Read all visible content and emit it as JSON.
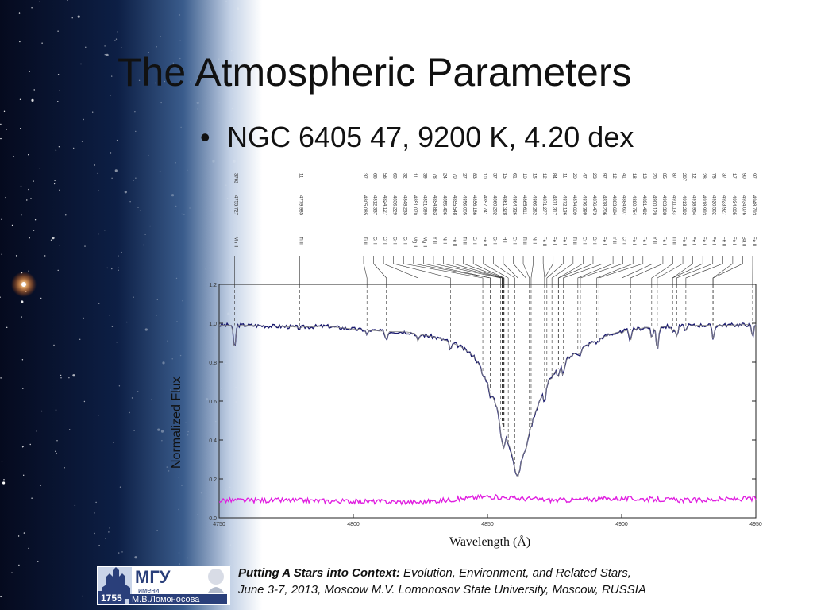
{
  "slide": {
    "title": "The Atmospheric Parameters",
    "bullet": "NGC 6405 47, 9200 K, 4.20 dex"
  },
  "footer": {
    "event_bold": "Putting A Stars into Context:",
    "event_rest": " Evolution, Environment, and Related Stars,",
    "line2": "June 3-7, 2013, Moscow M.V. Lomonosov State University, Moscow, RUSSIA"
  },
  "logo": {
    "text_main": "МГУ",
    "text_imeni": "имени",
    "text_name": "М.В.Ломоносова",
    "year": "1755"
  },
  "colors": {
    "observed": "#1a1a6e",
    "residual": "#e020e0",
    "lines": "#333333"
  },
  "chart_data": {
    "type": "line",
    "xlabel": "Wavelength (Å)",
    "ylabel": "Normalized Flux",
    "xlim": [
      4750,
      4950
    ],
    "ylim": [
      0.0,
      1.2
    ],
    "xticks": [
      4750,
      4800,
      4850,
      4900,
      4950
    ],
    "yticks": [
      0.0,
      0.2,
      0.4,
      0.6,
      0.8,
      1.0,
      1.2
    ],
    "series": [
      {
        "kind": "observed spectrum",
        "x": [
          4750,
          4760,
          4770,
          4780,
          4790,
          4800,
          4810,
          4820,
          4830,
          4835,
          4840,
          4845,
          4848,
          4851,
          4854,
          4856,
          4858,
          4860,
          4861.3,
          4862,
          4864,
          4866,
          4868,
          4870,
          4872,
          4875,
          4880,
          4885,
          4890,
          4895,
          4900,
          4910,
          4920,
          4930,
          4940,
          4950
        ],
        "y": [
          0.99,
          0.99,
          0.985,
          0.98,
          0.985,
          0.97,
          0.96,
          0.955,
          0.93,
          0.91,
          0.88,
          0.83,
          0.76,
          0.66,
          0.55,
          0.46,
          0.38,
          0.29,
          0.2,
          0.25,
          0.37,
          0.47,
          0.55,
          0.62,
          0.69,
          0.75,
          0.82,
          0.87,
          0.91,
          0.94,
          0.96,
          0.98,
          0.985,
          0.99,
          0.99,
          0.995
        ]
      },
      {
        "kind": "residual",
        "x": [
          4750,
          4775,
          4800,
          4825,
          4850,
          4875,
          4900,
          4925,
          4950
        ],
        "y": [
          0.09,
          0.09,
          0.085,
          0.08,
          0.11,
          0.09,
          0.1,
          0.09,
          0.1
        ]
      }
    ],
    "absorption_lines": [
      {
        "wl": 4755.73,
        "ion": "Mn II",
        "label": "4755.727",
        "ew": "3762"
      },
      {
        "wl": 4779.99,
        "ion": "Ti II",
        "label": "4779.985",
        "ew": "11"
      },
      {
        "wl": 4805.09,
        "ion": "Ti II",
        "label": "4805.085",
        "ew": "37"
      },
      {
        "wl": 4812.34,
        "ion": "Cr II",
        "label": "4812.337",
        "ew": "66"
      },
      {
        "wl": 4824.13,
        "ion": "Cr II",
        "label": "4824.127",
        "ew": "56"
      },
      {
        "wl": 4836.23,
        "ion": "Cr II",
        "label": "4836.229",
        "ew": "60"
      },
      {
        "wl": 4848.24,
        "ion": "Cr II",
        "label": "4848.235",
        "ew": "32"
      },
      {
        "wl": 4851.07,
        "ion": "Mg II",
        "label": "4851.070",
        "ew": "11"
      },
      {
        "wl": 4851.1,
        "ion": "Mg II",
        "label": "4851.099",
        "ew": "39"
      },
      {
        "wl": 4854.86,
        "ion": "Y II",
        "label": "4854.863",
        "ew": "78"
      },
      {
        "wl": 4855.41,
        "ion": "Ni I",
        "label": "4855.406",
        "ew": "24"
      },
      {
        "wl": 4855.55,
        "ion": "Fe II",
        "label": "4855.548",
        "ew": "70"
      },
      {
        "wl": 4856.01,
        "ion": "Ti II",
        "label": "4856.005",
        "ew": "27"
      },
      {
        "wl": 4856.19,
        "ion": "Cr II",
        "label": "4856.186",
        "ew": "83"
      },
      {
        "wl": 4857.74,
        "ion": "Fe II",
        "label": "4857.741",
        "ew": "10"
      },
      {
        "wl": 4860.2,
        "ion": "Cr I",
        "label": "4860.202",
        "ew": "37"
      },
      {
        "wl": 4861.33,
        "ion": "H I",
        "label": "4861.328",
        "ew": "15"
      },
      {
        "wl": 4864.33,
        "ion": "Cr I",
        "label": "4864.326",
        "ew": "61"
      },
      {
        "wl": 4865.61,
        "ion": "Ti II",
        "label": "4865.611",
        "ew": "10"
      },
      {
        "wl": 4866.26,
        "ion": "Ni I",
        "label": "4866.262",
        "ew": "15"
      },
      {
        "wl": 4871.28,
        "ion": "Fe II",
        "label": "4871.277",
        "ew": "12"
      },
      {
        "wl": 4871.32,
        "ion": "Fe I",
        "label": "4871.317",
        "ew": "84"
      },
      {
        "wl": 4872.14,
        "ion": "Fe I",
        "label": "4872.136",
        "ew": "11"
      },
      {
        "wl": 4874.01,
        "ion": "Ti II",
        "label": "4874.009",
        "ew": "20"
      },
      {
        "wl": 4876.4,
        "ion": "Cr II",
        "label": "4876.399",
        "ew": "47"
      },
      {
        "wl": 4876.47,
        "ion": "Cr II",
        "label": "4876.473",
        "ew": "23"
      },
      {
        "wl": 4878.21,
        "ion": "Fe I",
        "label": "4878.206",
        "ew": "97"
      },
      {
        "wl": 4883.68,
        "ion": "Y II",
        "label": "4883.684",
        "ew": "12"
      },
      {
        "wl": 4884.61,
        "ion": "Cr II",
        "label": "4884.607",
        "ew": "41"
      },
      {
        "wl": 4890.75,
        "ion": "Fe I",
        "label": "4890.754",
        "ew": "18"
      },
      {
        "wl": 4891.49,
        "ion": "Fe I",
        "label": "4891.492",
        "ew": "13"
      },
      {
        "wl": 4900.12,
        "ion": "Y II",
        "label": "4900.120",
        "ew": "20"
      },
      {
        "wl": 4903.31,
        "ion": "Fe I",
        "label": "4903.308",
        "ew": "85"
      },
      {
        "wl": 4911.19,
        "ion": "Ti II",
        "label": "4911.193",
        "ew": "87"
      },
      {
        "wl": 4913.29,
        "ion": "Fe II",
        "label": "4913.292",
        "ew": "207"
      },
      {
        "wl": 4918.95,
        "ion": "Fe I",
        "label": "4918.954",
        "ew": "12"
      },
      {
        "wl": 4918.99,
        "ion": "Fe I",
        "label": "4918.993",
        "ew": "28"
      },
      {
        "wl": 4920.5,
        "ion": "Fe I",
        "label": "4920.502",
        "ew": "78"
      },
      {
        "wl": 4923.93,
        "ion": "Fe II",
        "label": "4923.927",
        "ew": "37"
      },
      {
        "wl": 4934.01,
        "ion": "Fe I",
        "label": "4934.005",
        "ew": "17"
      },
      {
        "wl": 4934.08,
        "ion": "Ba II",
        "label": "4934.076",
        "ew": "90"
      },
      {
        "wl": 4948.79,
        "ion": "Fe II",
        "label": "4948.793",
        "ew": "97"
      }
    ]
  }
}
